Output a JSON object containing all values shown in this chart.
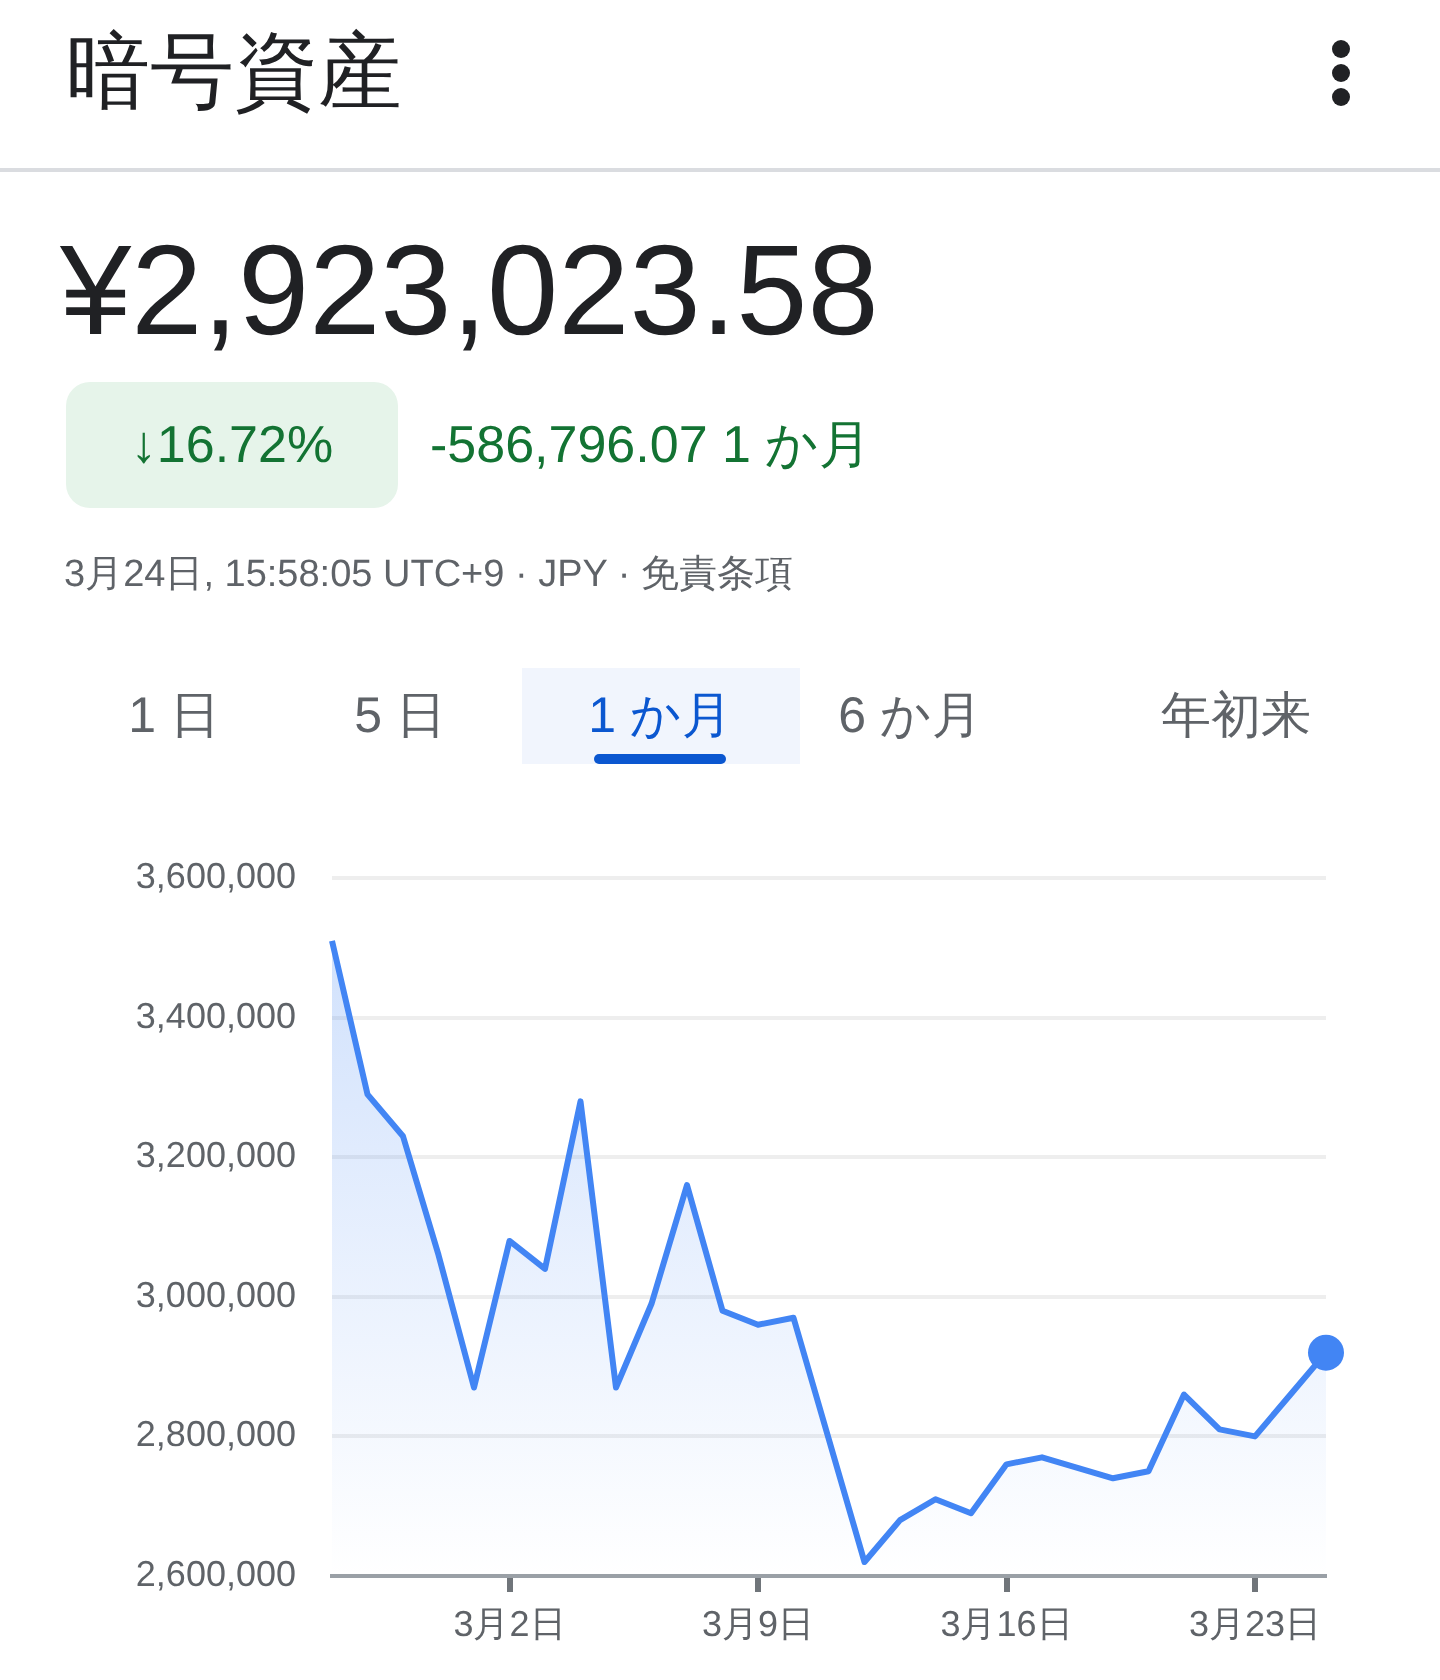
{
  "chart_data": {
    "type": "area",
    "title": "暗号資産",
    "annotations": [
      "¥2,923,023.58",
      "↓16.72%",
      "-586,796.07 1 か月",
      "3月24日, 15:58:05 UTC+9 · JPY · 免責条項",
      "1 日",
      "5 日",
      "1 か月",
      "6 か月",
      "年初来"
    ],
    "x": [
      "--02-25",
      "--02-26",
      "--02-27",
      "--02-28",
      "--03-01",
      "--03-02",
      "--03-03",
      "--03-04",
      "--03-05",
      "--03-06",
      "--03-07",
      "--03-08",
      "--03-09",
      "--03-10",
      "--03-12",
      "--03-13",
      "--03-14",
      "--03-15",
      "--03-16",
      "--03-17",
      "--03-19",
      "--03-20",
      "--03-21",
      "--03-22",
      "--03-23",
      "--03-24",
      "--03-25"
    ],
    "series": [
      {
        "color": "#4285f4",
        "values": [
          3510000,
          3290000,
          3230000,
          3060000,
          2870000,
          3080000,
          3040000,
          3280000,
          2870000,
          2990000,
          3160000,
          2980000,
          2960000,
          2970000,
          2620000,
          2680000,
          2710000,
          2690000,
          2760000,
          2770000,
          2740000,
          2750000,
          2860000,
          2810000,
          2800000,
          2860000,
          2920000
        ]
      }
    ],
    "xlim": [
      "--02-25",
      "--03-25"
    ],
    "xticks": [
      {
        "value": "--03-02",
        "label": "3月2日"
      },
      {
        "value": "--03-09",
        "label": "3月9日"
      },
      {
        "value": "--03-16",
        "label": "3月16日"
      },
      {
        "value": "--03-23",
        "label": "3月23日"
      }
    ],
    "ylim": [
      2600000,
      3600000
    ],
    "yticks": [
      {
        "value": 2600000,
        "label": "2,600,000"
      },
      {
        "value": 2800000,
        "label": "2,800,000"
      },
      {
        "value": 3000000,
        "label": "3,000,000"
      },
      {
        "value": 3200000,
        "label": "3,200,000"
      },
      {
        "value": 3400000,
        "label": "3,400,000"
      },
      {
        "value": 3600000,
        "label": "3,600,000"
      }
    ],
    "grid": "y",
    "legend": false
  }
}
